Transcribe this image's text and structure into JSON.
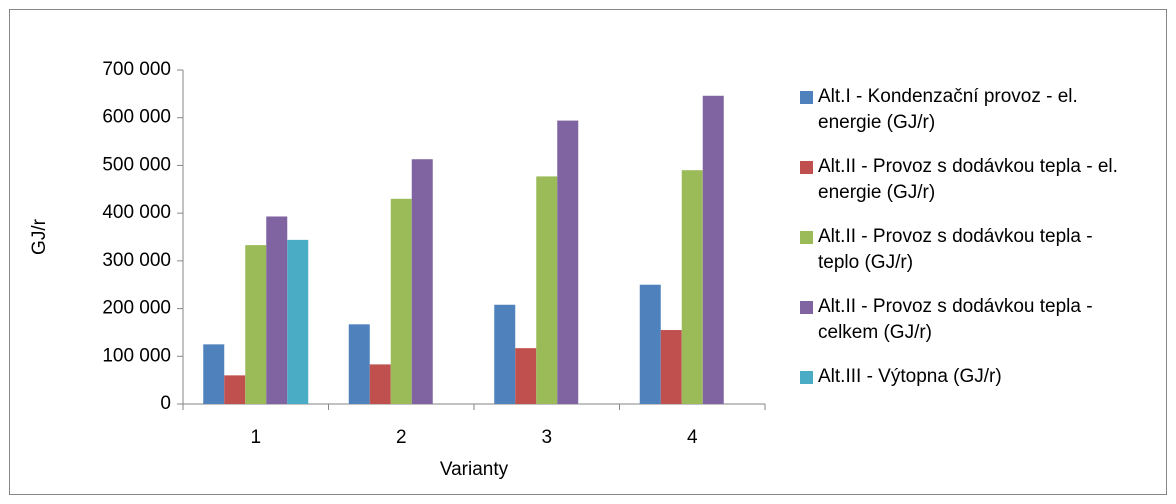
{
  "chart_data": {
    "type": "bar",
    "x_label": "Varianty",
    "y_label": "GJ/r",
    "categories": [
      "1",
      "2",
      "3",
      "4"
    ],
    "series": [
      {
        "name": "Alt.I - Kondenzační provoz - el. energie (GJ/r)",
        "color": "#4f81bd",
        "values": [
          125000,
          167000,
          208000,
          250000
        ]
      },
      {
        "name": "Alt.II - Provoz s dodávkou tepla - el. energie (GJ/r)",
        "color": "#c0504d",
        "values": [
          60000,
          83000,
          117000,
          155000
        ]
      },
      {
        "name": "Alt.II - Provoz s dodávkou tepla - teplo (GJ/r)",
        "color": "#9bbb59",
        "values": [
          333000,
          430000,
          477000,
          490000
        ]
      },
      {
        "name": "Alt.II - Provoz s dodávkou tepla - celkem (GJ/r)",
        "color": "#8064a2",
        "values": [
          393000,
          513000,
          594000,
          646000
        ]
      },
      {
        "name": "Alt.III - Výtopna (GJ/r)",
        "color": "#4bacc6",
        "values": [
          344000,
          null,
          null,
          null
        ]
      }
    ],
    "ylim": [
      0,
      700000
    ],
    "yticks": [
      0,
      {
        "value": 100000,
        "label": "100 000"
      },
      {
        "value": 200000,
        "label": "200 000"
      },
      {
        "value": 300000,
        "label": "300 000"
      },
      {
        "value": 400000,
        "label": "400 000"
      },
      {
        "value": 500000,
        "label": "500 000"
      },
      {
        "value": 600000,
        "label": "600 000"
      },
      {
        "value": 700000,
        "label": "700 000"
      }
    ],
    "grid": false,
    "legend": "right"
  }
}
